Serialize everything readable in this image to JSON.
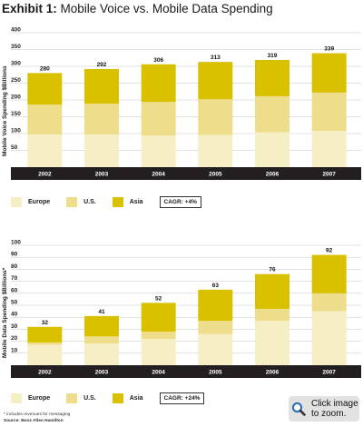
{
  "page": {
    "title_bold": "Exhibit 1:",
    "title_rest": "Mobile Voice vs. Mobile Data Spending",
    "footnote": "* includes revenues for messaging",
    "source": "Source: Booz Allen Hamilton",
    "zoom_line1": "Click image",
    "zoom_line2": "to zoom."
  },
  "colors": {
    "europe": "#f6efc6",
    "us": "#eedd8a",
    "asia": "#d9c100",
    "band": "#231f20",
    "band_text": "#ffffff",
    "grid": "#c4c4c4"
  },
  "chart_data": [
    {
      "type": "bar",
      "stacked": true,
      "title": "",
      "ylabel": "Mobile Voice Spending $Billions",
      "xlabel": "",
      "ylim": [
        0,
        400
      ],
      "yticks": [
        50,
        100,
        150,
        200,
        250,
        300,
        350,
        400
      ],
      "grid": true,
      "categories": [
        "2002",
        "2003",
        "2004",
        "2005",
        "2006",
        "2007"
      ],
      "series": [
        {
          "name": "Europe",
          "values": [
            97,
            97,
            94,
            96,
            104,
            108
          ]
        },
        {
          "name": "U.S.",
          "values": [
            89,
            92,
            100,
            106,
            107,
            114
          ]
        },
        {
          "name": "Asia",
          "values": [
            94,
            103,
            112,
            111,
            108,
            117
          ]
        }
      ],
      "totals": [
        280,
        292,
        306,
        313,
        319,
        339
      ],
      "legend": {
        "items": [
          "Europe",
          "U.S.",
          "Asia"
        ],
        "position": "bottom-left"
      },
      "annotation": "CAGR: +4%"
    },
    {
      "type": "bar",
      "stacked": true,
      "title": "",
      "ylabel": "Mobile Data Spending $Billions*",
      "xlabel": "",
      "ylim": [
        0,
        100
      ],
      "yticks": [
        10,
        20,
        30,
        40,
        50,
        60,
        70,
        80,
        90,
        100
      ],
      "grid": true,
      "categories": [
        "2002",
        "2003",
        "2004",
        "2005",
        "2006",
        "2007"
      ],
      "series": [
        {
          "name": "Europe",
          "values": [
            17,
            18,
            22,
            26,
            37,
            45
          ]
        },
        {
          "name": "U.S.",
          "values": [
            2,
            6,
            6,
            11,
            10,
            15
          ]
        },
        {
          "name": "Asia",
          "values": [
            13,
            17,
            24,
            26,
            29,
            32
          ]
        }
      ],
      "totals": [
        32,
        41,
        52,
        63,
        76,
        92
      ],
      "legend": {
        "items": [
          "Europe",
          "U.S.",
          "Asia"
        ],
        "position": "bottom-left"
      },
      "annotation": "CAGR: +24%"
    }
  ]
}
